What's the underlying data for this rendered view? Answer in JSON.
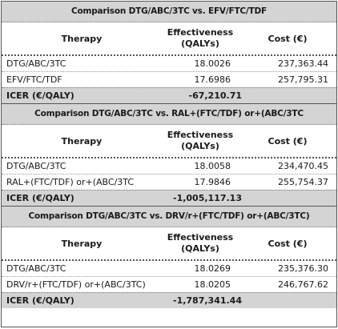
{
  "sections": [
    {
      "title": "Comparison DTG/ABC/3TC vs. EFV/FTC/TDF",
      "headers": {
        "therapy": "Therapy",
        "effectiveness_line1": "Effectiveness",
        "effectiveness_line2": "(QALYs)",
        "cost": "Cost (€)"
      },
      "rows": [
        {
          "therapy": "DTG/ABC/3TC",
          "effectiveness": "18.0026",
          "cost": "237,363.44"
        },
        {
          "therapy": "EFV/FTC/TDF",
          "effectiveness": "17.6986",
          "cost": "257,795.31"
        }
      ],
      "icer_label": "ICER (€/QALY)",
      "icer_value": "-67,210.71"
    },
    {
      "title": "Comparison DTG/ABC/3TC vs. RAL+(FTC/TDF) or+(ABC/3TC",
      "headers": {
        "therapy": "Therapy",
        "effectiveness_line1": "Effectiveness",
        "effectiveness_line2": "(QALYs)",
        "cost": "Cost (€)"
      },
      "rows": [
        {
          "therapy": "DTG/ABC/3TC",
          "effectiveness": "18.0058",
          "cost": "234,470.45"
        },
        {
          "therapy": "RAL+(FTC/TDF) or+(ABC/3TC",
          "effectiveness": "17.9846",
          "cost": "255,754.37"
        }
      ],
      "icer_label": "ICER (€/QALY)",
      "icer_value": "-1,005,117.13"
    },
    {
      "title": "Comparison DTG/ABC/3TC vs. DRV/r+(FTC/TDF) or+(ABC/3TC)",
      "headers": {
        "therapy": "Therapy",
        "effectiveness_line1": "Effectiveness",
        "effectiveness_line2": "(QALYs)",
        "cost": "Cost (€)"
      },
      "rows": [
        {
          "therapy": "DTG/ABC/3TC",
          "effectiveness": "18.0269",
          "cost": "235,376.30"
        },
        {
          "therapy": "DRV/r+(FTC/TDF) or+(ABC/3TC)",
          "effectiveness": "18.0205",
          "cost": "246,767.62"
        }
      ],
      "icer_label": "ICER (€/QALY)",
      "icer_value": "-1,787,341.44"
    }
  ]
}
